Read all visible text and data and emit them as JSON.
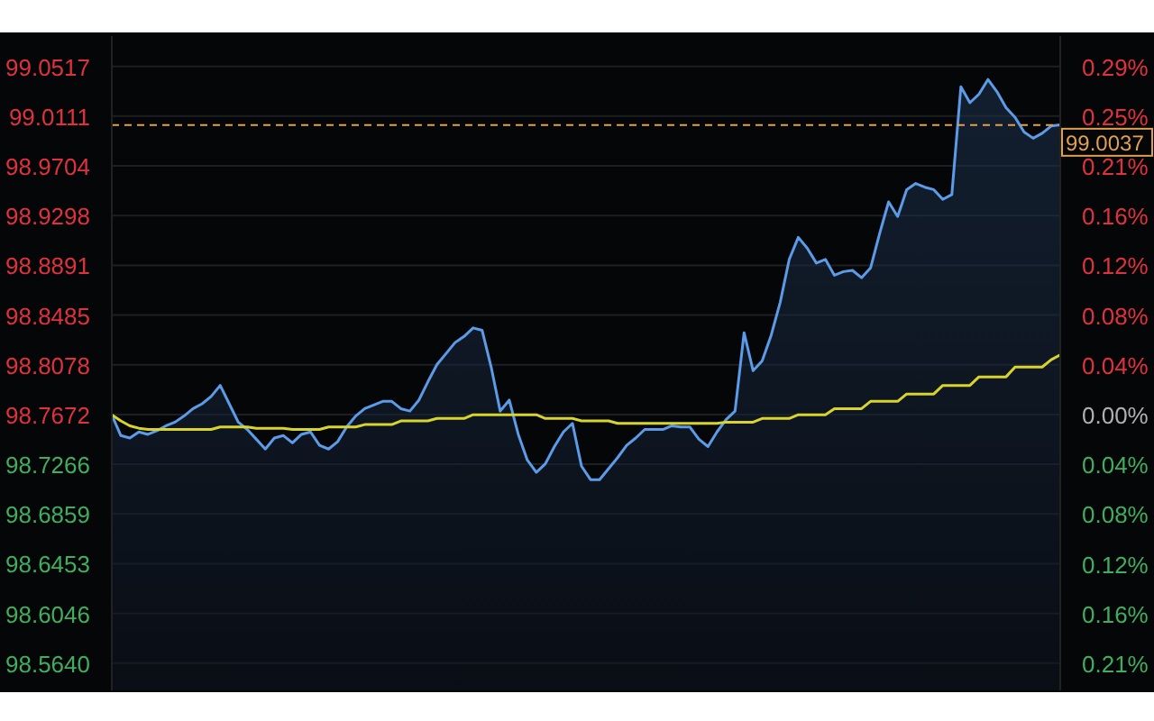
{
  "chart_data": {
    "type": "area",
    "categories": [
      null,
      null,
      null,
      null,
      null,
      null,
      null,
      null,
      null,
      null,
      null,
      null,
      null,
      null,
      null,
      null,
      null,
      null,
      null,
      null,
      null,
      null,
      null,
      null,
      null,
      null,
      null,
      null,
      null,
      null,
      null,
      null,
      null,
      null,
      null,
      null,
      null,
      null,
      null,
      null,
      null,
      null,
      null,
      null,
      null,
      null,
      null,
      null,
      null,
      null,
      null,
      null,
      null,
      null,
      null,
      null,
      null,
      null,
      null,
      null,
      null,
      null,
      null,
      null,
      null,
      null,
      null,
      null,
      null,
      null,
      null,
      null,
      null,
      null,
      null,
      null,
      null,
      null,
      null,
      null,
      null,
      null,
      null,
      null,
      null,
      null,
      null,
      null,
      null,
      null,
      null,
      null,
      null,
      null,
      null,
      null,
      null,
      null,
      null,
      null,
      null,
      null,
      null,
      null,
      null,
      null
    ],
    "series": [
      {
        "color": "#5b9be8",
        "values": [
          98.767,
          98.75,
          98.748,
          98.753,
          98.751,
          98.754,
          98.758,
          98.761,
          98.766,
          98.772,
          98.776,
          98.782,
          98.791,
          98.776,
          98.761,
          98.755,
          98.747,
          98.739,
          98.748,
          98.75,
          98.744,
          98.751,
          98.753,
          98.742,
          98.739,
          98.745,
          98.757,
          98.766,
          98.772,
          98.775,
          98.778,
          98.778,
          98.772,
          98.77,
          98.779,
          98.794,
          98.808,
          98.817,
          98.826,
          98.831,
          98.838,
          98.836,
          98.806,
          98.77,
          98.779,
          98.751,
          98.73,
          98.72,
          98.727,
          98.741,
          98.753,
          98.76,
          98.725,
          98.714,
          98.714,
          98.723,
          98.732,
          98.742,
          98.748,
          98.755,
          98.755,
          98.755,
          98.758,
          98.757,
          98.757,
          98.747,
          98.741,
          98.753,
          98.763,
          98.77,
          98.834,
          98.803,
          98.811,
          98.832,
          98.859,
          98.894,
          98.912,
          98.903,
          98.891,
          98.894,
          98.881,
          98.884,
          98.885,
          98.879,
          98.887,
          98.915,
          98.941,
          98.929,
          98.951,
          98.956,
          98.953,
          98.951,
          98.943,
          98.947,
          99.035,
          99.022,
          99.029,
          99.041,
          99.031,
          99.018,
          99.01,
          98.998,
          98.993,
          98.997,
          99.003,
          99.004
        ]
      },
      {
        "type": "line",
        "color": "#d8d42c",
        "values": [
          98.767,
          98.762,
          98.758,
          98.756,
          98.755,
          98.755,
          98.755,
          98.755,
          98.755,
          98.755,
          98.755,
          98.755,
          98.757,
          98.757,
          98.757,
          98.757,
          98.756,
          98.756,
          98.756,
          98.756,
          98.755,
          98.755,
          98.755,
          98.755,
          98.757,
          98.757,
          98.757,
          98.757,
          98.759,
          98.759,
          98.759,
          98.759,
          98.762,
          98.762,
          98.762,
          98.762,
          98.764,
          98.764,
          98.764,
          98.764,
          98.767,
          98.767,
          98.767,
          98.767,
          98.767,
          98.767,
          98.767,
          98.767,
          98.764,
          98.764,
          98.764,
          98.764,
          98.762,
          98.762,
          98.762,
          98.762,
          98.76,
          98.76,
          98.76,
          98.76,
          98.76,
          98.76,
          98.76,
          98.76,
          98.76,
          98.76,
          98.76,
          98.76,
          98.761,
          98.761,
          98.761,
          98.761,
          98.764,
          98.764,
          98.764,
          98.764,
          98.767,
          98.767,
          98.767,
          98.767,
          98.772,
          98.772,
          98.772,
          98.772,
          98.778,
          98.778,
          98.778,
          98.778,
          98.784,
          98.784,
          98.784,
          98.784,
          98.791,
          98.791,
          98.791,
          98.791,
          98.798,
          98.798,
          98.798,
          98.798,
          98.806,
          98.806,
          98.806,
          98.806,
          98.812,
          98.816
        ]
      }
    ],
    "ylim": [
      98.5418,
      99.0765
    ],
    "yticks": [
      99.0517,
      99.0111,
      98.9704,
      98.9298,
      98.8891,
      98.8485,
      98.8078,
      98.7672,
      98.7266,
      98.6859,
      98.6453,
      98.6046,
      {
        "value": 98.564,
        "label": "98.5640"
      }
    ],
    "y2lim": [
      -0.2282,
      0.3132
    ],
    "y2ticks": [
      {
        "value": 0.2881,
        "label": "0.29%"
      },
      {
        "value": 0.2469,
        "label": "0.25%"
      },
      {
        "value": 0.2058,
        "label": "0.21%"
      },
      {
        "value": 0.1646,
        "label": "0.16%"
      },
      {
        "value": 0.1235,
        "label": "0.12%"
      },
      {
        "value": 0.0823,
        "label": "0.08%"
      },
      {
        "value": 0.0412,
        "label": "0.04%"
      },
      {
        "value": 0,
        "label": "0.00%"
      },
      {
        "value": -0.0412,
        "label": "0.04%"
      },
      {
        "value": -0.0823,
        "label": "0.08%"
      },
      {
        "value": -0.1235,
        "label": "0.12%"
      },
      {
        "value": -0.1646,
        "label": "0.16%"
      },
      {
        "value": -0.2058,
        "label": "0.21%"
      }
    ],
    "ref_lines": [
      {
        "axis": "y",
        "value": 99.0037,
        "label": "99.0037",
        "color": "#e0a050",
        "line_style": "dashed"
      }
    ],
    "grid": "y"
  }
}
